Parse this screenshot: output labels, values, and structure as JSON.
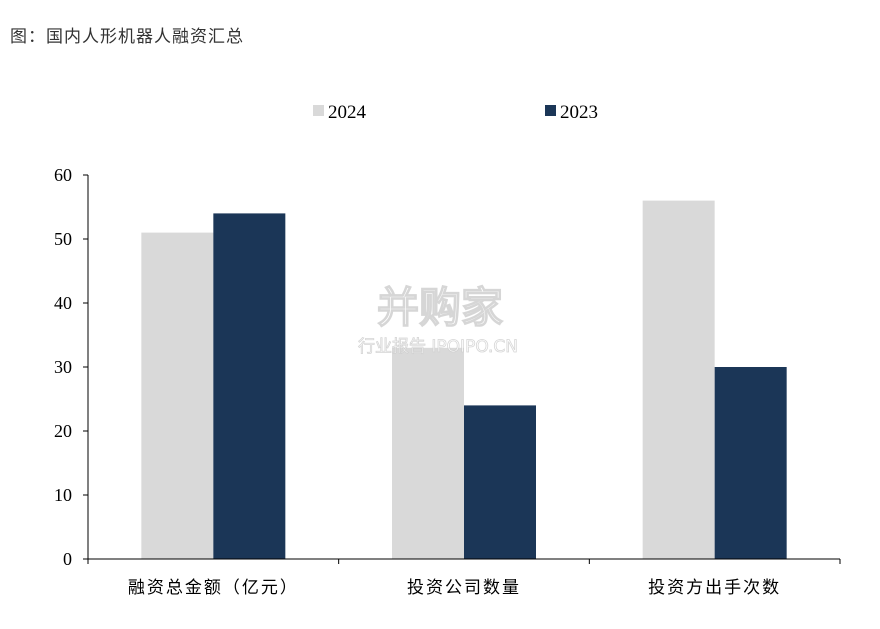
{
  "caption": "图：国内人形机器人融资汇总",
  "watermark": {
    "brand": "并购家",
    "sub": "行业报告 IPOIPO.CN"
  },
  "chart_data": {
    "type": "bar",
    "categories": [
      "融资总金额（亿元）",
      "投资公司数量",
      "投资方出手次数"
    ],
    "series": [
      {
        "name": "2024",
        "color": "#d9d9d9",
        "values": [
          51,
          33,
          56
        ]
      },
      {
        "name": "2023",
        "color": "#1b3657",
        "values": [
          54,
          24,
          30
        ]
      }
    ],
    "ylim": [
      0,
      60
    ],
    "yticks": [
      0,
      10,
      20,
      30,
      40,
      50,
      60
    ],
    "legend_position": "top-center",
    "grid": false
  }
}
